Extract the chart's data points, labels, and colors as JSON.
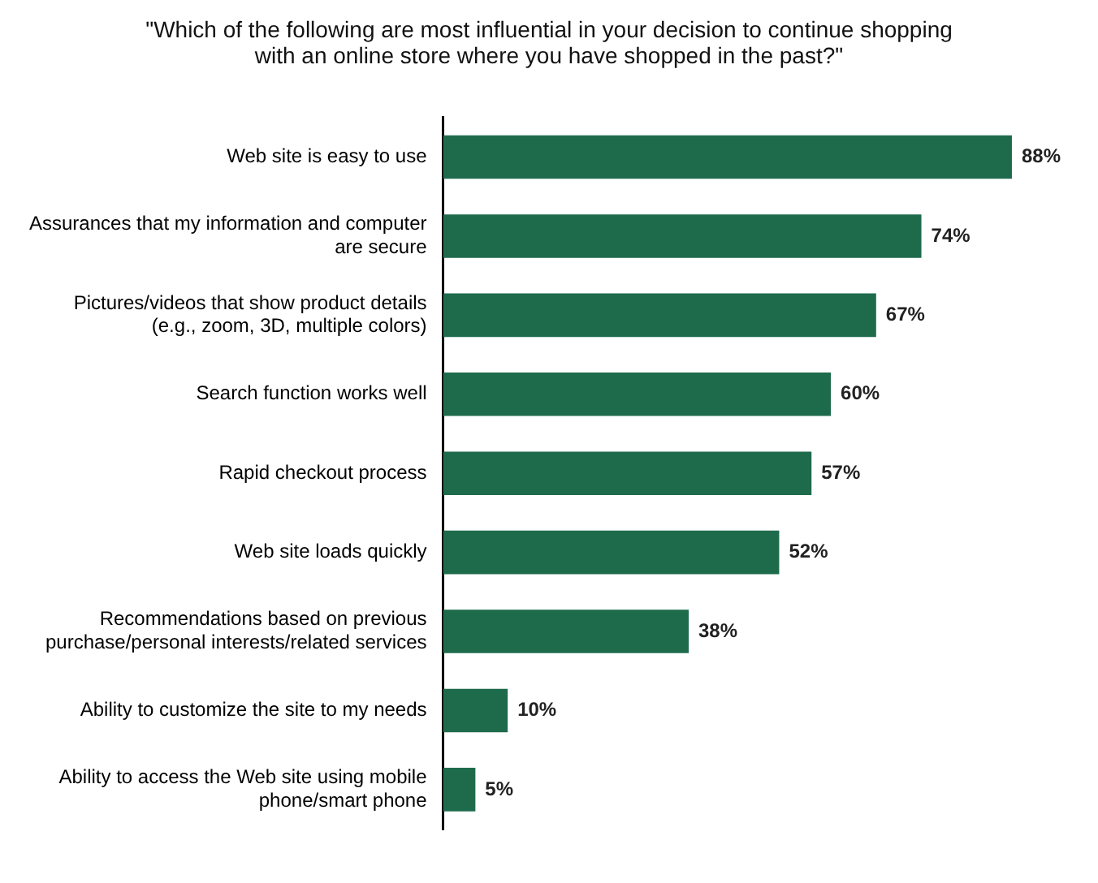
{
  "chart_data": {
    "type": "bar",
    "orientation": "horizontal",
    "title": "\"Which of the following are most influential in your decision to continue shopping with an online store where you have shopped in the past?\"",
    "categories": [
      "Web site is easy to use",
      "Assurances that my information and computer are secure",
      "Pictures/videos that show product details (e.g., zoom, 3D, multiple colors)",
      "Search function works well",
      "Rapid checkout process",
      "Web site loads quickly",
      "Recommendations based on previous purchase/personal interests/related services",
      "Ability to customize the site to my needs",
      "Ability to access the Web site using mobile phone/smart phone"
    ],
    "values": [
      88,
      74,
      67,
      60,
      57,
      52,
      38,
      10,
      5
    ],
    "value_labels": [
      "88%",
      "74%",
      "67%",
      "60%",
      "57%",
      "52%",
      "38%",
      "10%",
      "5%"
    ],
    "color": "#1e6b4c",
    "grid": false,
    "legend": false
  }
}
